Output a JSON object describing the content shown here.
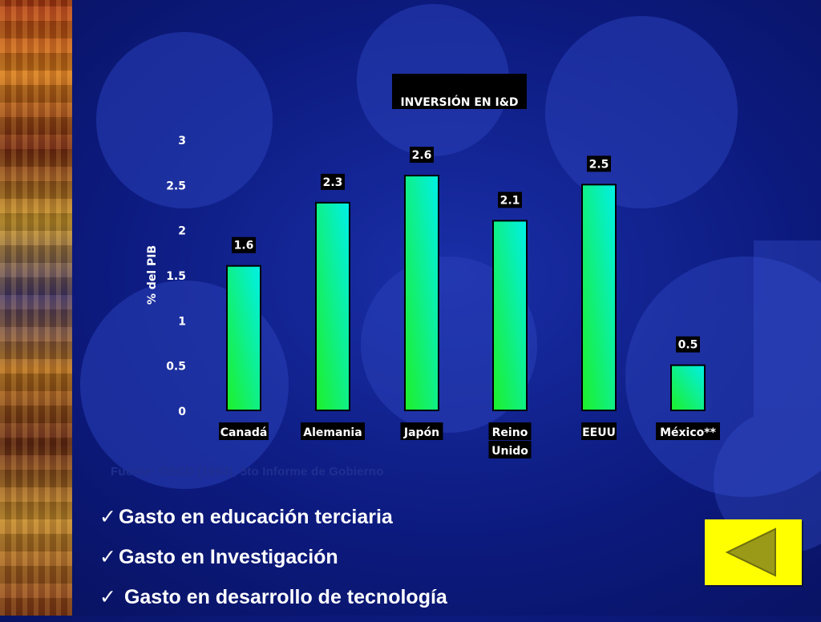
{
  "chart_data": {
    "type": "bar",
    "title": "INVERSIÓN EN I&D",
    "ylabel": "% del PIB",
    "xlabel": "",
    "categories": [
      [
        "Canadá"
      ],
      [
        "Alemania"
      ],
      [
        "Japón"
      ],
      [
        "Reino",
        "Unido"
      ],
      [
        "EEUU"
      ],
      [
        "México**"
      ]
    ],
    "values": [
      1.6,
      2.3,
      2.6,
      2.1,
      2.5,
      0.5
    ],
    "value_labels": [
      "1.6",
      "2.3",
      "2.6",
      "2.1",
      "2.5",
      "0.5"
    ],
    "ylim": [
      0,
      3
    ],
    "yticks": [
      "0",
      "0.5",
      "1",
      "1.5",
      "2",
      "2.5",
      "3"
    ],
    "grid": false,
    "bar_color_top": "#00f0e8",
    "bar_color_bottom": "#1ef028"
  },
  "source_note": "Fuente: OECD (1994), 5to Informe de Gobierno",
  "bullets": [
    {
      "check": "✓",
      "text": "Gasto en educación terciaria"
    },
    {
      "check": "✓",
      "text": "Gasto en Investigación"
    },
    {
      "check": "✓",
      "text": " Gasto en desarrollo de tecnología"
    }
  ],
  "nav": {
    "icon": "back-triangle-icon",
    "color": "#ffff00",
    "arrow_color": "#9a9a18"
  }
}
